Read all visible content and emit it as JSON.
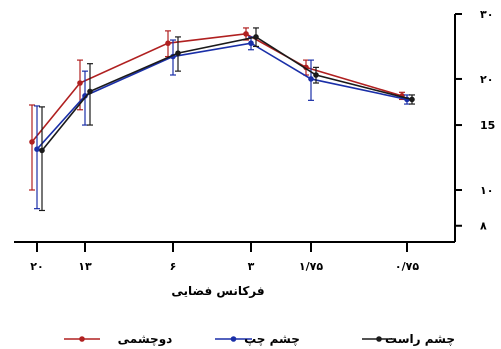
{
  "chart_data": {
    "type": "line",
    "title": "",
    "xlabel": "فرکانس فضایی",
    "ylabel": "",
    "x_tick_labels": [
      "۲۰",
      "۱۳",
      "۶",
      "۳",
      "۱/۷۵",
      "۰/۷۵"
    ],
    "y_tick_labels": [
      "۳۰",
      "۲۰",
      "15",
      "۱۰",
      "۸"
    ],
    "y_tick_values": [
      30,
      20,
      15,
      10,
      8
    ],
    "ylim": [
      7,
      30
    ],
    "y_scale": "log",
    "legend_position": "bottom",
    "grid": false,
    "series": [
      {
        "name": "دوچشمی",
        "color": "#b02020",
        "x": [
          "۲۰",
          "۱۳",
          "۶",
          "۳",
          "۱/۷۵",
          "۰/۷۵"
        ],
        "values": [
          13.5,
          19.5,
          25.0,
          26.5,
          21.5,
          18.0
        ],
        "errors": [
          3.5,
          3.0,
          2.0,
          1.0,
          1.0,
          0.4
        ]
      },
      {
        "name": "چشم چپ",
        "color": "#1a2fa8",
        "x": [
          "۲۰",
          "۱۳",
          "۶",
          "۳",
          "۱/۷۵",
          "۰/۷۵"
        ],
        "values": [
          12.9,
          18.0,
          23.0,
          25.0,
          20.0,
          17.6
        ],
        "errors": [
          4.0,
          3.0,
          2.5,
          1.0,
          2.5,
          0.5
        ]
      },
      {
        "name": "چشم راست",
        "color": "#1a1a1a",
        "x": [
          "۲۰",
          "۱۳",
          "۶",
          "۳",
          "۱/۷۵",
          "۰/۷۵"
        ],
        "values": [
          12.8,
          18.5,
          23.5,
          26.0,
          20.5,
          17.6
        ],
        "errors": [
          4.0,
          3.5,
          2.5,
          1.5,
          1.0,
          0.5
        ]
      }
    ]
  }
}
